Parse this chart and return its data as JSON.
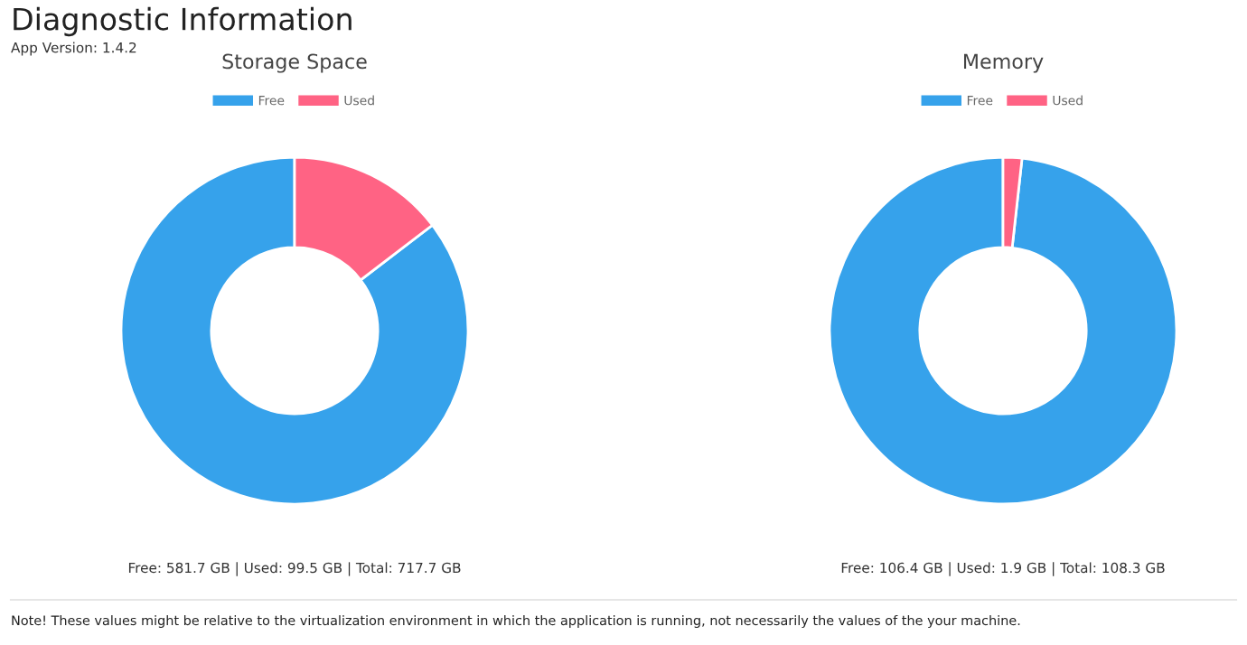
{
  "chart_data": [
    {
      "type": "donut",
      "title": "Storage Space",
      "categories": [
        "Free",
        "Used"
      ],
      "values": [
        85.4,
        14.6
      ],
      "colors": [
        "#36a2eb",
        "#ff6384"
      ],
      "legend": "top",
      "annotations": [
        "Diagnostic Information",
        "App Version: 1.4.2",
        "Free: 581.7 GB | Used: 99.5 GB | Total: 717.7 GB"
      ]
    },
    {
      "type": "donut",
      "title": "Memory",
      "categories": [
        "Free",
        "Used"
      ],
      "values": [
        98.25,
        1.75
      ],
      "colors": [
        "#36a2eb",
        "#ff6384"
      ],
      "legend": "top",
      "annotations": [
        "Free: 106.4 GB | Used: 1.9 GB | Total: 108.3 GB",
        "Note! These values might be relative to the virtualization environment in which the application is running, not necessarily the values of the your machine."
      ]
    }
  ]
}
